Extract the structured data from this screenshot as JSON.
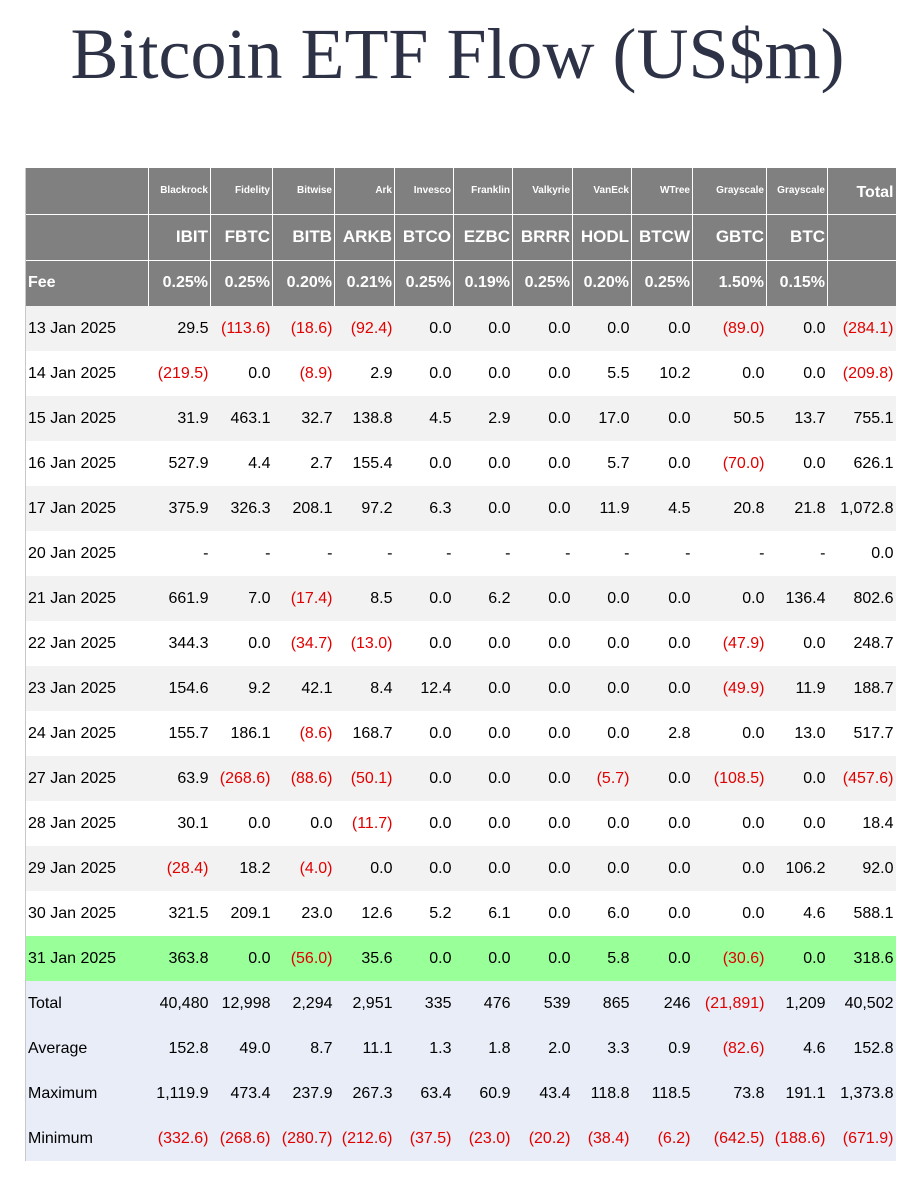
{
  "title": "Bitcoin ETF Flow (US$m)",
  "header": {
    "issuers": [
      "Blackrock",
      "Fidelity",
      "Bitwise",
      "Ark",
      "Invesco",
      "Franklin",
      "Valkyrie",
      "VanEck",
      "WTree",
      "Grayscale",
      "Grayscale"
    ],
    "total_label": "Total",
    "tickers": [
      "IBIT",
      "FBTC",
      "BITB",
      "ARKB",
      "BTCO",
      "EZBC",
      "BRRR",
      "HODL",
      "BTCW",
      "GBTC",
      "BTC"
    ],
    "fee_label": "Fee",
    "fees": [
      "0.25%",
      "0.25%",
      "0.20%",
      "0.21%",
      "0.25%",
      "0.19%",
      "0.25%",
      "0.20%",
      "0.25%",
      "1.50%",
      "0.15%"
    ]
  },
  "rows": [
    {
      "date": "13 Jan 2025",
      "values": [
        "29.5",
        "(113.6)",
        "(18.6)",
        "(92.4)",
        "0.0",
        "0.0",
        "0.0",
        "0.0",
        "0.0",
        "(89.0)",
        "0.0",
        "(284.1)"
      ]
    },
    {
      "date": "14 Jan 2025",
      "values": [
        "(219.5)",
        "0.0",
        "(8.9)",
        "2.9",
        "0.0",
        "0.0",
        "0.0",
        "5.5",
        "10.2",
        "0.0",
        "0.0",
        "(209.8)"
      ]
    },
    {
      "date": "15 Jan 2025",
      "values": [
        "31.9",
        "463.1",
        "32.7",
        "138.8",
        "4.5",
        "2.9",
        "0.0",
        "17.0",
        "0.0",
        "50.5",
        "13.7",
        "755.1"
      ]
    },
    {
      "date": "16 Jan 2025",
      "values": [
        "527.9",
        "4.4",
        "2.7",
        "155.4",
        "0.0",
        "0.0",
        "0.0",
        "5.7",
        "0.0",
        "(70.0)",
        "0.0",
        "626.1"
      ]
    },
    {
      "date": "17 Jan 2025",
      "values": [
        "375.9",
        "326.3",
        "208.1",
        "97.2",
        "6.3",
        "0.0",
        "0.0",
        "11.9",
        "4.5",
        "20.8",
        "21.8",
        "1,072.8"
      ]
    },
    {
      "date": "20 Jan 2025",
      "values": [
        "-",
        "-",
        "-",
        "-",
        "-",
        "-",
        "-",
        "-",
        "-",
        "-",
        "-",
        "0.0"
      ]
    },
    {
      "date": "21 Jan 2025",
      "values": [
        "661.9",
        "7.0",
        "(17.4)",
        "8.5",
        "0.0",
        "6.2",
        "0.0",
        "0.0",
        "0.0",
        "0.0",
        "136.4",
        "802.6"
      ]
    },
    {
      "date": "22 Jan 2025",
      "values": [
        "344.3",
        "0.0",
        "(34.7)",
        "(13.0)",
        "0.0",
        "0.0",
        "0.0",
        "0.0",
        "0.0",
        "(47.9)",
        "0.0",
        "248.7"
      ]
    },
    {
      "date": "23 Jan 2025",
      "values": [
        "154.6",
        "9.2",
        "42.1",
        "8.4",
        "12.4",
        "0.0",
        "0.0",
        "0.0",
        "0.0",
        "(49.9)",
        "11.9",
        "188.7"
      ]
    },
    {
      "date": "24 Jan 2025",
      "values": [
        "155.7",
        "186.1",
        "(8.6)",
        "168.7",
        "0.0",
        "0.0",
        "0.0",
        "0.0",
        "2.8",
        "0.0",
        "13.0",
        "517.7"
      ]
    },
    {
      "date": "27 Jan 2025",
      "values": [
        "63.9",
        "(268.6)",
        "(88.6)",
        "(50.1)",
        "0.0",
        "0.0",
        "0.0",
        "(5.7)",
        "0.0",
        "(108.5)",
        "0.0",
        "(457.6)"
      ]
    },
    {
      "date": "28 Jan 2025",
      "values": [
        "30.1",
        "0.0",
        "0.0",
        "(11.7)",
        "0.0",
        "0.0",
        "0.0",
        "0.0",
        "0.0",
        "0.0",
        "0.0",
        "18.4"
      ]
    },
    {
      "date": "29 Jan 2025",
      "values": [
        "(28.4)",
        "18.2",
        "(4.0)",
        "0.0",
        "0.0",
        "0.0",
        "0.0",
        "0.0",
        "0.0",
        "0.0",
        "106.2",
        "92.0"
      ]
    },
    {
      "date": "30 Jan 2025",
      "values": [
        "321.5",
        "209.1",
        "23.0",
        "12.6",
        "5.2",
        "6.1",
        "0.0",
        "6.0",
        "0.0",
        "0.0",
        "4.6",
        "588.1"
      ]
    },
    {
      "date": "31 Jan 2025",
      "values": [
        "363.8",
        "0.0",
        "(56.0)",
        "35.6",
        "0.0",
        "0.0",
        "0.0",
        "5.8",
        "0.0",
        "(30.6)",
        "0.0",
        "318.6"
      ]
    }
  ],
  "highlight_row_index": 14,
  "highlight_color": "#99ff99",
  "negative_color": "#e00000",
  "header_color": "#808080",
  "summary": [
    {
      "label": "Total",
      "values": [
        "40,480",
        "12,998",
        "2,294",
        "2,951",
        "335",
        "476",
        "539",
        "865",
        "246",
        "(21,891)",
        "1,209",
        "40,502"
      ]
    },
    {
      "label": "Average",
      "values": [
        "152.8",
        "49.0",
        "8.7",
        "11.1",
        "1.3",
        "1.8",
        "2.0",
        "3.3",
        "0.9",
        "(82.6)",
        "4.6",
        "152.8"
      ]
    },
    {
      "label": "Maximum",
      "values": [
        "1,119.9",
        "473.4",
        "237.9",
        "267.3",
        "63.4",
        "60.9",
        "43.4",
        "118.8",
        "118.5",
        "73.8",
        "191.1",
        "1,373.8"
      ]
    },
    {
      "label": "Minimum",
      "values": [
        "(332.6)",
        "(268.6)",
        "(280.7)",
        "(212.6)",
        "(37.5)",
        "(23.0)",
        "(20.2)",
        "(38.4)",
        "(6.2)",
        "(642.5)",
        "(188.6)",
        "(671.9)"
      ]
    }
  ]
}
